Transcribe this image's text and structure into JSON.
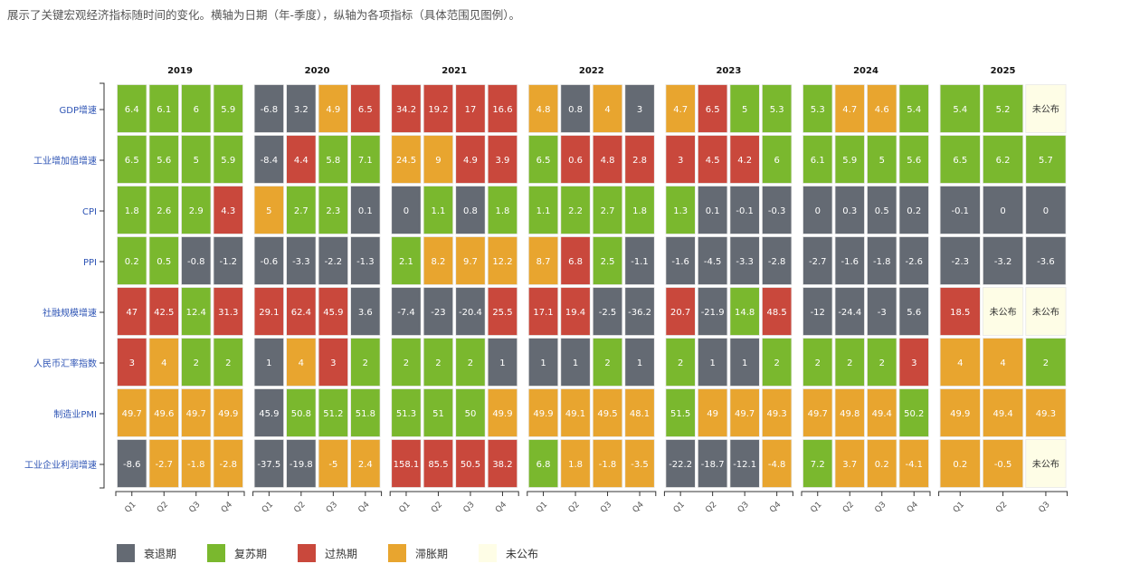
{
  "description": "展示了关键宏观经济指标随时间的变化。横轴为日期（年-季度），纵轴为各项指标（具体范围见图例）。",
  "chart_data": {
    "type": "heatmap",
    "rows": [
      "GDP增速",
      "工业增加值增速",
      "CPI",
      "PPI",
      "社融规模增速",
      "人民币汇率指数",
      "制造业PMI",
      "工业企业利润增速"
    ],
    "legend_placement": "bottom-left",
    "phases": {
      "R": {
        "label": "衰退期",
        "color": "#646a73"
      },
      "G": {
        "label": "复苏期",
        "color": "#7ab82e"
      },
      "H": {
        "label": "过热期",
        "color": "#c9483c"
      },
      "S": {
        "label": "滞胀期",
        "color": "#e8a52f"
      },
      "N": {
        "label": "未公布",
        "color": "#fefde6"
      }
    },
    "legend_order": [
      "R",
      "G",
      "H",
      "S",
      "N"
    ],
    "years": [
      {
        "year": "2019",
        "quarters": [
          "Q1",
          "Q2",
          "Q3",
          "Q4"
        ],
        "cells": [
          [
            [
              "6.4",
              "G"
            ],
            [
              "6.1",
              "G"
            ],
            [
              "6",
              "G"
            ],
            [
              "5.9",
              "G"
            ]
          ],
          [
            [
              "6.5",
              "G"
            ],
            [
              "5.6",
              "G"
            ],
            [
              "5",
              "G"
            ],
            [
              "5.9",
              "G"
            ]
          ],
          [
            [
              "1.8",
              "G"
            ],
            [
              "2.6",
              "G"
            ],
            [
              "2.9",
              "G"
            ],
            [
              "4.3",
              "H"
            ]
          ],
          [
            [
              "0.2",
              "G"
            ],
            [
              "0.5",
              "G"
            ],
            [
              "-0.8",
              "R"
            ],
            [
              "-1.2",
              "R"
            ]
          ],
          [
            [
              "47",
              "H"
            ],
            [
              "42.5",
              "H"
            ],
            [
              "12.4",
              "G"
            ],
            [
              "31.3",
              "H"
            ]
          ],
          [
            [
              "3",
              "H"
            ],
            [
              "4",
              "S"
            ],
            [
              "2",
              "G"
            ],
            [
              "2",
              "G"
            ]
          ],
          [
            [
              "49.7",
              "S"
            ],
            [
              "49.6",
              "S"
            ],
            [
              "49.7",
              "S"
            ],
            [
              "49.9",
              "S"
            ]
          ],
          [
            [
              "-8.6",
              "R"
            ],
            [
              "-2.7",
              "S"
            ],
            [
              "-1.8",
              "S"
            ],
            [
              "-2.8",
              "S"
            ]
          ]
        ]
      },
      {
        "year": "2020",
        "quarters": [
          "Q1",
          "Q2",
          "Q3",
          "Q4"
        ],
        "cells": [
          [
            [
              "-6.8",
              "R"
            ],
            [
              "3.2",
              "R"
            ],
            [
              "4.9",
              "S"
            ],
            [
              "6.5",
              "H"
            ]
          ],
          [
            [
              "-8.4",
              "R"
            ],
            [
              "4.4",
              "H"
            ],
            [
              "5.8",
              "G"
            ],
            [
              "7.1",
              "G"
            ]
          ],
          [
            [
              "5",
              "S"
            ],
            [
              "2.7",
              "G"
            ],
            [
              "2.3",
              "G"
            ],
            [
              "0.1",
              "R"
            ]
          ],
          [
            [
              "-0.6",
              "R"
            ],
            [
              "-3.3",
              "R"
            ],
            [
              "-2.2",
              "R"
            ],
            [
              "-1.3",
              "R"
            ]
          ],
          [
            [
              "29.1",
              "H"
            ],
            [
              "62.4",
              "H"
            ],
            [
              "45.9",
              "H"
            ],
            [
              "3.6",
              "R"
            ]
          ],
          [
            [
              "1",
              "R"
            ],
            [
              "4",
              "S"
            ],
            [
              "3",
              "H"
            ],
            [
              "2",
              "G"
            ]
          ],
          [
            [
              "45.9",
              "R"
            ],
            [
              "50.8",
              "G"
            ],
            [
              "51.2",
              "G"
            ],
            [
              "51.8",
              "G"
            ]
          ],
          [
            [
              "-37.5",
              "R"
            ],
            [
              "-19.8",
              "R"
            ],
            [
              "-5",
              "S"
            ],
            [
              "2.4",
              "S"
            ]
          ]
        ]
      },
      {
        "year": "2021",
        "quarters": [
          "Q1",
          "Q2",
          "Q3",
          "Q4"
        ],
        "cells": [
          [
            [
              "34.2",
              "H"
            ],
            [
              "19.2",
              "H"
            ],
            [
              "17",
              "H"
            ],
            [
              "16.6",
              "H"
            ]
          ],
          [
            [
              "24.5",
              "S"
            ],
            [
              "9",
              "S"
            ],
            [
              "4.9",
              "H"
            ],
            [
              "3.9",
              "H"
            ]
          ],
          [
            [
              "0",
              "R"
            ],
            [
              "1.1",
              "G"
            ],
            [
              "0.8",
              "R"
            ],
            [
              "1.8",
              "G"
            ]
          ],
          [
            [
              "2.1",
              "G"
            ],
            [
              "8.2",
              "S"
            ],
            [
              "9.7",
              "S"
            ],
            [
              "12.2",
              "S"
            ]
          ],
          [
            [
              "-7.4",
              "R"
            ],
            [
              "-23",
              "R"
            ],
            [
              "-20.4",
              "R"
            ],
            [
              "25.5",
              "H"
            ]
          ],
          [
            [
              "2",
              "G"
            ],
            [
              "2",
              "G"
            ],
            [
              "2",
              "G"
            ],
            [
              "1",
              "R"
            ]
          ],
          [
            [
              "51.3",
              "G"
            ],
            [
              "51",
              "G"
            ],
            [
              "50",
              "G"
            ],
            [
              "49.9",
              "S"
            ]
          ],
          [
            [
              "158.1",
              "H"
            ],
            [
              "85.5",
              "H"
            ],
            [
              "50.5",
              "H"
            ],
            [
              "38.2",
              "H"
            ]
          ]
        ]
      },
      {
        "year": "2022",
        "quarters": [
          "Q1",
          "Q2",
          "Q3",
          "Q4"
        ],
        "cells": [
          [
            [
              "4.8",
              "S"
            ],
            [
              "0.8",
              "R"
            ],
            [
              "4",
              "S"
            ],
            [
              "3",
              "R"
            ]
          ],
          [
            [
              "6.5",
              "G"
            ],
            [
              "0.6",
              "H"
            ],
            [
              "4.8",
              "H"
            ],
            [
              "2.8",
              "H"
            ]
          ],
          [
            [
              "1.1",
              "G"
            ],
            [
              "2.2",
              "G"
            ],
            [
              "2.7",
              "G"
            ],
            [
              "1.8",
              "G"
            ]
          ],
          [
            [
              "8.7",
              "S"
            ],
            [
              "6.8",
              "H"
            ],
            [
              "2.5",
              "G"
            ],
            [
              "-1.1",
              "R"
            ]
          ],
          [
            [
              "17.1",
              "H"
            ],
            [
              "19.4",
              "H"
            ],
            [
              "-2.5",
              "R"
            ],
            [
              "-36.2",
              "R"
            ]
          ],
          [
            [
              "1",
              "R"
            ],
            [
              "1",
              "R"
            ],
            [
              "2",
              "G"
            ],
            [
              "1",
              "R"
            ]
          ],
          [
            [
              "49.9",
              "S"
            ],
            [
              "49.1",
              "S"
            ],
            [
              "49.5",
              "S"
            ],
            [
              "48.1",
              "S"
            ]
          ],
          [
            [
              "6.8",
              "G"
            ],
            [
              "1.8",
              "S"
            ],
            [
              "-1.8",
              "S"
            ],
            [
              "-3.5",
              "S"
            ]
          ]
        ]
      },
      {
        "year": "2023",
        "quarters": [
          "Q1",
          "Q2",
          "Q3",
          "Q4"
        ],
        "cells": [
          [
            [
              "4.7",
              "S"
            ],
            [
              "6.5",
              "H"
            ],
            [
              "5",
              "G"
            ],
            [
              "5.3",
              "G"
            ]
          ],
          [
            [
              "3",
              "H"
            ],
            [
              "4.5",
              "H"
            ],
            [
              "4.2",
              "H"
            ],
            [
              "6",
              "G"
            ]
          ],
          [
            [
              "1.3",
              "G"
            ],
            [
              "0.1",
              "R"
            ],
            [
              "-0.1",
              "R"
            ],
            [
              "-0.3",
              "R"
            ]
          ],
          [
            [
              "-1.6",
              "R"
            ],
            [
              "-4.5",
              "R"
            ],
            [
              "-3.3",
              "R"
            ],
            [
              "-2.8",
              "R"
            ]
          ],
          [
            [
              "20.7",
              "H"
            ],
            [
              "-21.9",
              "R"
            ],
            [
              "14.8",
              "G"
            ],
            [
              "48.5",
              "H"
            ]
          ],
          [
            [
              "2",
              "G"
            ],
            [
              "1",
              "R"
            ],
            [
              "1",
              "R"
            ],
            [
              "2",
              "G"
            ]
          ],
          [
            [
              "51.5",
              "G"
            ],
            [
              "49",
              "S"
            ],
            [
              "49.7",
              "S"
            ],
            [
              "49.3",
              "S"
            ]
          ],
          [
            [
              "-22.2",
              "R"
            ],
            [
              "-18.7",
              "R"
            ],
            [
              "-12.1",
              "R"
            ],
            [
              "-4.8",
              "S"
            ]
          ]
        ]
      },
      {
        "year": "2024",
        "quarters": [
          "Q1",
          "Q2",
          "Q3",
          "Q4"
        ],
        "cells": [
          [
            [
              "5.3",
              "G"
            ],
            [
              "4.7",
              "S"
            ],
            [
              "4.6",
              "S"
            ],
            [
              "5.4",
              "G"
            ]
          ],
          [
            [
              "6.1",
              "G"
            ],
            [
              "5.9",
              "G"
            ],
            [
              "5",
              "G"
            ],
            [
              "5.6",
              "G"
            ]
          ],
          [
            [
              "0",
              "R"
            ],
            [
              "0.3",
              "R"
            ],
            [
              "0.5",
              "R"
            ],
            [
              "0.2",
              "R"
            ]
          ],
          [
            [
              "-2.7",
              "R"
            ],
            [
              "-1.6",
              "R"
            ],
            [
              "-1.8",
              "R"
            ],
            [
              "-2.6",
              "R"
            ]
          ],
          [
            [
              "-12",
              "R"
            ],
            [
              "-24.4",
              "R"
            ],
            [
              "-3",
              "R"
            ],
            [
              "5.6",
              "R"
            ]
          ],
          [
            [
              "2",
              "G"
            ],
            [
              "2",
              "G"
            ],
            [
              "2",
              "G"
            ],
            [
              "3",
              "H"
            ]
          ],
          [
            [
              "49.7",
              "S"
            ],
            [
              "49.8",
              "S"
            ],
            [
              "49.4",
              "S"
            ],
            [
              "50.2",
              "G"
            ]
          ],
          [
            [
              "7.2",
              "G"
            ],
            [
              "3.7",
              "S"
            ],
            [
              "0.2",
              "S"
            ],
            [
              "-4.1",
              "S"
            ]
          ]
        ]
      },
      {
        "year": "2025",
        "quarters": [
          "Q1",
          "Q2",
          "Q3"
        ],
        "cells": [
          [
            [
              "5.4",
              "G"
            ],
            [
              "5.2",
              "G"
            ],
            [
              "未公布",
              "N"
            ]
          ],
          [
            [
              "6.5",
              "G"
            ],
            [
              "6.2",
              "G"
            ],
            [
              "5.7",
              "G"
            ]
          ],
          [
            [
              "-0.1",
              "R"
            ],
            [
              "0",
              "R"
            ],
            [
              "0",
              "R"
            ]
          ],
          [
            [
              "-2.3",
              "R"
            ],
            [
              "-3.2",
              "R"
            ],
            [
              "-3.6",
              "R"
            ]
          ],
          [
            [
              "18.5",
              "H"
            ],
            [
              "未公布",
              "N"
            ],
            [
              "未公布",
              "N"
            ]
          ],
          [
            [
              "4",
              "S"
            ],
            [
              "4",
              "S"
            ],
            [
              "2",
              "G"
            ]
          ],
          [
            [
              "49.9",
              "S"
            ],
            [
              "49.4",
              "S"
            ],
            [
              "49.3",
              "S"
            ]
          ],
          [
            [
              "0.2",
              "S"
            ],
            [
              "-0.5",
              "S"
            ],
            [
              "未公布",
              "N"
            ]
          ]
        ]
      }
    ]
  }
}
